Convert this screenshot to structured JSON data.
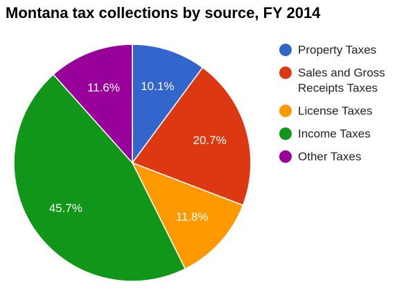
{
  "chart_data": {
    "type": "pie",
    "title": "Montana tax collections by source, FY 2014",
    "categories": [
      "Property Taxes",
      "Sales and Gross Receipts Taxes",
      "License Taxes",
      "Income Taxes",
      "Other Taxes"
    ],
    "values": [
      10.1,
      20.7,
      11.8,
      45.7,
      11.6
    ],
    "value_labels": [
      "10.1%",
      "20.7%",
      "11.8%",
      "45.7%",
      "11.6%"
    ],
    "colors": [
      "#3366cc",
      "#dc3912",
      "#ff9900",
      "#109618",
      "#990099"
    ],
    "legend": {
      "placement": "right",
      "entries": [
        {
          "lines": [
            "Property Taxes"
          ]
        },
        {
          "lines": [
            "Sales and Gross",
            "Receipts Taxes"
          ]
        },
        {
          "lines": [
            "License Taxes"
          ]
        },
        {
          "lines": [
            "Income Taxes"
          ]
        },
        {
          "lines": [
            "Other Taxes"
          ]
        }
      ]
    }
  }
}
